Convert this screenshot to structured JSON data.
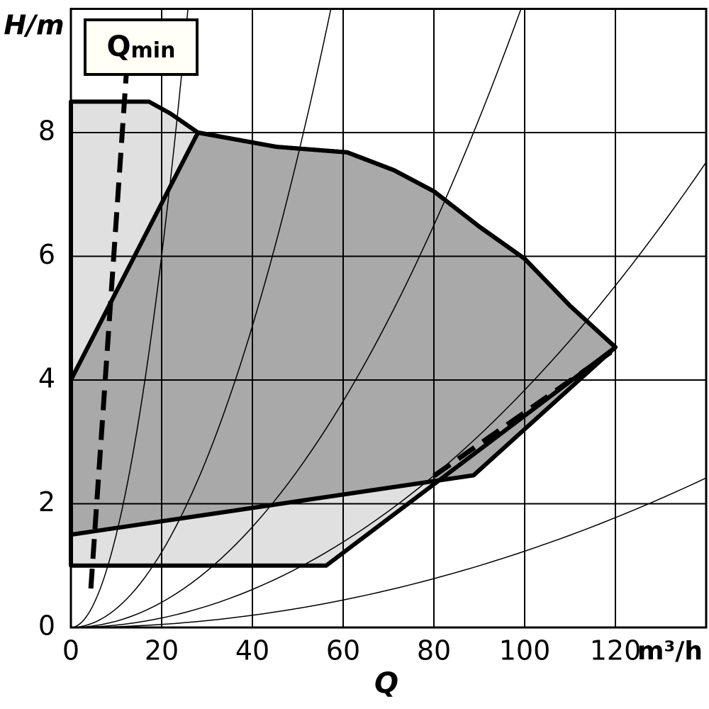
{
  "chart_data": {
    "type": "pump-curve",
    "x_label": "Q",
    "x_unit": "m³/h",
    "y_label": "H/m",
    "annotation": {
      "text": "Q",
      "sub": "min"
    },
    "xlim": [
      0,
      140
    ],
    "ylim": [
      0,
      10
    ],
    "xticks": [
      0,
      20,
      40,
      60,
      80,
      100,
      120
    ],
    "yticks": [
      0,
      2,
      4,
      6,
      8
    ],
    "grid": true,
    "regions": [
      {
        "color": "#e0e0e0",
        "x": [
          0,
          17.2,
          21.9,
          28,
          45.3,
          60.9,
          71.25,
          80,
          90,
          100,
          110,
          120,
          56.25,
          0
        ],
        "y": [
          8.5,
          8.5,
          8.31,
          8.0,
          7.77,
          7.68,
          7.39,
          7.05,
          6.48,
          5.96,
          5.2,
          4.53,
          1.0,
          1.0
        ]
      },
      {
        "color": "#a9a9a9",
        "x": [
          0,
          28,
          45.3,
          60.9,
          71.25,
          80,
          90,
          100,
          110,
          120,
          88.75,
          0
        ],
        "y": [
          4.0,
          8.0,
          7.77,
          7.68,
          7.39,
          7.05,
          6.48,
          5.96,
          5.2,
          4.53,
          2.46,
          1.5
        ]
      }
    ],
    "dashed_lines": [
      {
        "x": [
          4.4,
          12.2
        ],
        "y": [
          0.63,
          8.94
        ]
      },
      {
        "x": [
          80,
          119
        ],
        "y": [
          2.45,
          4.45
        ]
      }
    ],
    "system_curves": [
      {
        "x": 25.8,
        "y": 10
      },
      {
        "x": 57.3,
        "y": 10
      },
      {
        "x": 99.2,
        "y": 10
      },
      {
        "x": 139.8,
        "y": 7.5
      },
      {
        "x": 139.8,
        "y": 2.41
      }
    ]
  }
}
